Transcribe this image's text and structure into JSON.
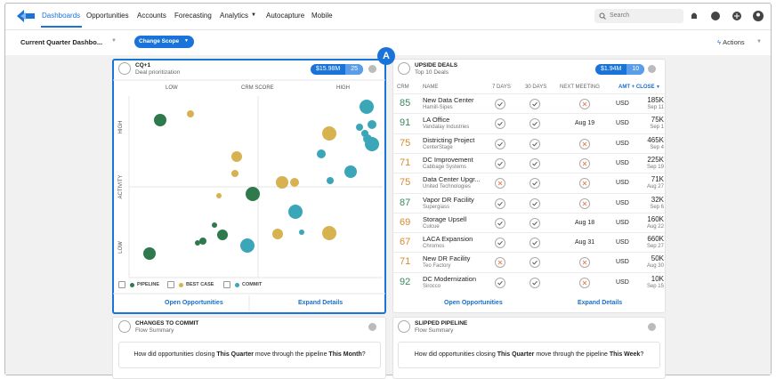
{
  "nav": {
    "tabs": [
      "Dashboards",
      "Opportunities",
      "Accounts",
      "Forecasting",
      "Analytics",
      "Autocapture",
      "Mobile"
    ],
    "search": "Search"
  },
  "toolbar": {
    "dashboard": "Current Quarter Dashbo...",
    "change_scope": "Change Scope",
    "actions": "Actions"
  },
  "badge": "A",
  "prioritization": {
    "title": "CQ+1",
    "subtitle": "Deal prioritization",
    "amount": "$15.98M",
    "count": "25",
    "x_low": "LOW",
    "x_label": "CRM SCORE",
    "x_high": "HIGH",
    "y_high": "HIGH",
    "y_label": "ACTIVITY",
    "y_low": "LOW",
    "legend": [
      {
        "name": "PIPELINE",
        "color": "#2e7a4c"
      },
      {
        "name": "BEST CASE",
        "color": "#d6b350"
      },
      {
        "name": "COMMIT",
        "color": "#3aa6b8"
      }
    ],
    "footer": [
      "Open Opportunities",
      "Expand Details"
    ]
  },
  "upside": {
    "title": "UPSIDE DEALS",
    "subtitle": "Top 10 Deals",
    "amount": "$1.94M",
    "count": "10",
    "columns": [
      "CRM",
      "NAME",
      "7 DAYS",
      "30 DAYS",
      "NEXT MEETING",
      "AMT + CLOSE"
    ],
    "rows": [
      {
        "crm": 85,
        "color": "#3a8a5a",
        "name": "New Data Center",
        "account": "Hamill-Sipes",
        "d7": true,
        "d30": true,
        "meeting": null,
        "currency": "USD",
        "amount": "185K",
        "close": "Sep 11"
      },
      {
        "crm": 91,
        "color": "#3a8a5a",
        "name": "LA Office",
        "account": "Vandalay Industries",
        "d7": true,
        "d30": true,
        "meeting": "Aug 19",
        "currency": "USD",
        "amount": "75K",
        "close": "Sep 1"
      },
      {
        "crm": 75,
        "color": "#d98a2b",
        "name": "Districting Project",
        "account": "CenterStage",
        "d7": true,
        "d30": true,
        "meeting": null,
        "currency": "USD",
        "amount": "465K",
        "close": "Sep 4"
      },
      {
        "crm": 71,
        "color": "#d98a2b",
        "name": "DC Improvement",
        "account": "Cabbage Systems",
        "d7": true,
        "d30": true,
        "meeting": null,
        "currency": "USD",
        "amount": "225K",
        "close": "Sep 19"
      },
      {
        "crm": 75,
        "color": "#d98a2b",
        "name": "Data Center Upgr...",
        "account": "United Technologies",
        "d7": false,
        "d30": true,
        "meeting": null,
        "currency": "USD",
        "amount": "71K",
        "close": "Aug 27"
      },
      {
        "crm": 87,
        "color": "#3a8a5a",
        "name": "Vapor DR Facility",
        "account": "Supergiass",
        "d7": true,
        "d30": true,
        "meeting": null,
        "currency": "USD",
        "amount": "32K",
        "close": "Sep 6"
      },
      {
        "crm": 69,
        "color": "#d98a2b",
        "name": "Storage Upsell",
        "account": "Culcue",
        "d7": true,
        "d30": true,
        "meeting": "Aug 18",
        "currency": "USD",
        "amount": "160K",
        "close": "Aug 22"
      },
      {
        "crm": 67,
        "color": "#d98a2b",
        "name": "LACA Expansion",
        "account": "Chromos",
        "d7": true,
        "d30": true,
        "meeting": "Aug 31",
        "currency": "USD",
        "amount": "660K",
        "close": "Sep 27"
      },
      {
        "crm": 71,
        "color": "#d98a2b",
        "name": "New DR Facility",
        "account": "Teo Factory",
        "d7": false,
        "d30": true,
        "meeting": null,
        "currency": "USD",
        "amount": "50K",
        "close": "Aug 30"
      },
      {
        "crm": 92,
        "color": "#3a8a5a",
        "name": "DC Modernization",
        "account": "Sirocco",
        "d7": true,
        "d30": true,
        "meeting": null,
        "currency": "USD",
        "amount": "10K",
        "close": "Sep 15"
      }
    ],
    "footer": [
      "Open Opportunities",
      "Expand Details"
    ]
  },
  "changes": {
    "title": "CHANGES TO COMMIT",
    "subtitle": "Flow Summary",
    "question": [
      "How did opportunities closing ",
      "This Quarter",
      " move through the pipeline ",
      "This Month",
      "?"
    ]
  },
  "slipped": {
    "title": "SLIPPED PIPELINE",
    "subtitle": "Flow Summary",
    "question": [
      "How did opportunities closing ",
      "This Quarter",
      " move through the pipeline ",
      "This Week",
      "?"
    ]
  }
}
